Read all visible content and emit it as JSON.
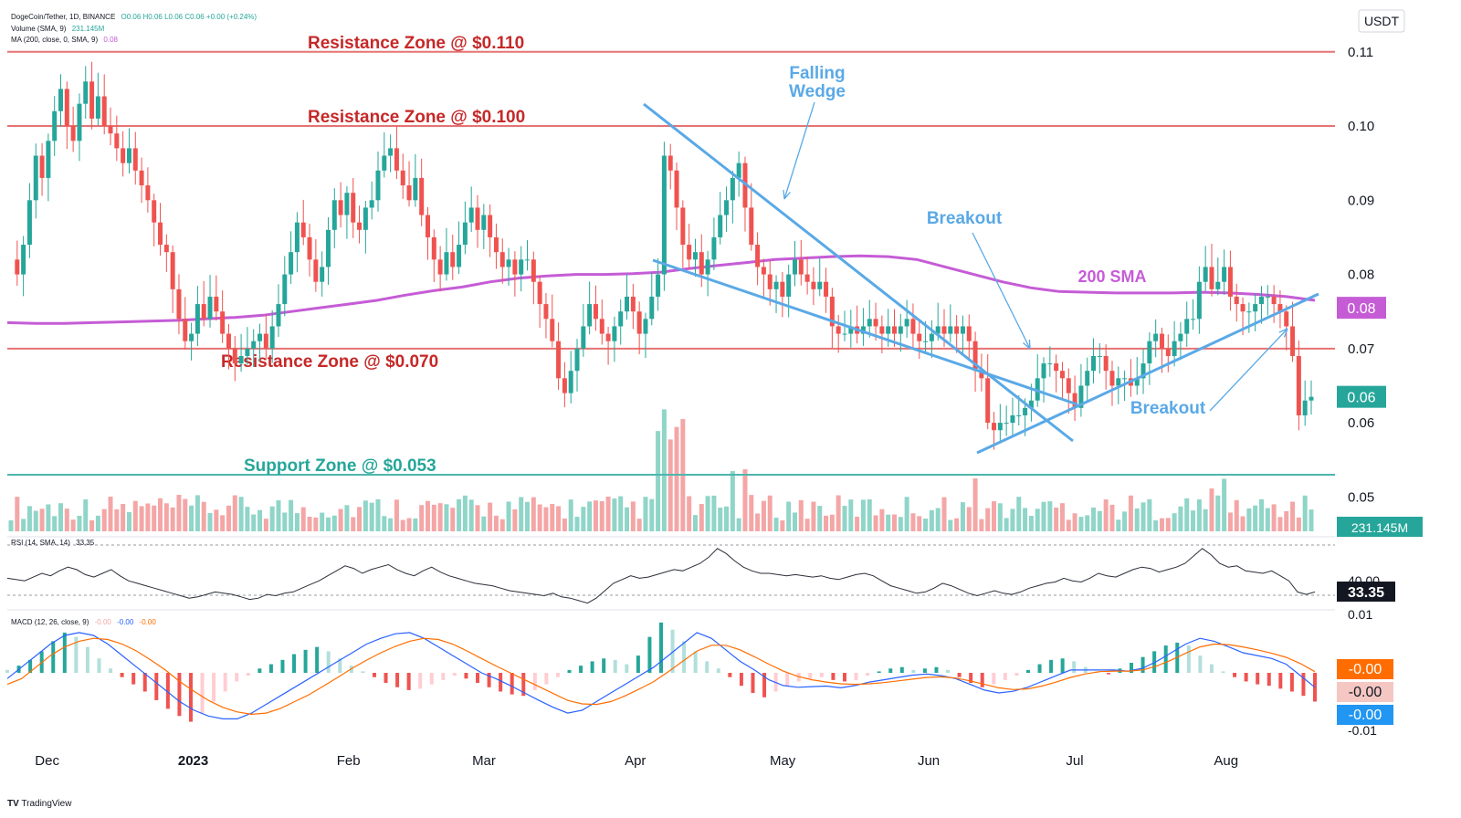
{
  "legend": {
    "symbol": "DogeCoin/Tether, 1D, BINANCE",
    "ohlc": "O0.06  H0.06  L0.06  C0.06  +0.00 (+0.24%)",
    "volume": "Volume (SMA, 9)",
    "volume_value": "231.145M",
    "ma": "MA (200, close, 0, SMA, 9)",
    "ma_value": "0.08",
    "rsi": "RSI (14, SMA, 14)",
    "rsi_value": "33.35",
    "macd": "MACD (12, 26, close, 9)",
    "macd_values": [
      "-0.00",
      "-0.00",
      "-0.00"
    ]
  },
  "currency": "USDT",
  "branding": "TradingView",
  "colors": {
    "up": "#26a69a",
    "down": "#ef5350",
    "up_vol": "#8fd5c8",
    "down_vol": "#f4a6a6",
    "sma": "#c55cd6",
    "resistance": "#e57373",
    "resistance_text": "#c62828",
    "support": "#4db6ac",
    "support_text": "#26a69a",
    "annotation": "#5aa9e6",
    "macd_line": "#2962ff",
    "signal_line": "#ff6d00"
  },
  "chart_data": {
    "type": "candlestick",
    "title": "DogeCoin/Tether, 1D, BINANCE",
    "x_labels": [
      "Dec",
      "2023",
      "Feb",
      "Mar",
      "Apr",
      "May",
      "Jun",
      "Jul",
      "Aug"
    ],
    "y_ticks": [
      "0.11",
      "0.10",
      "0.09",
      "0.08",
      "0.07",
      "0.06",
      "0.05"
    ],
    "ylim": [
      0.045,
      0.116
    ],
    "price_badges": [
      {
        "label": "0.08",
        "value": 0.0755,
        "color": "#c55cd6"
      },
      {
        "label": "0.06",
        "value": 0.0635,
        "color": "#26a69a"
      }
    ],
    "price_series": [
      0.082,
      0.08,
      0.084,
      0.09,
      0.096,
      0.093,
      0.098,
      0.102,
      0.105,
      0.1,
      0.098,
      0.103,
      0.106,
      0.101,
      0.104,
      0.1,
      0.099,
      0.097,
      0.095,
      0.097,
      0.094,
      0.092,
      0.09,
      0.087,
      0.084,
      0.083,
      0.078,
      0.074,
      0.071,
      0.072,
      0.076,
      0.074,
      0.077,
      0.075,
      0.072,
      0.07,
      0.068,
      0.069,
      0.07,
      0.071,
      0.072,
      0.07,
      0.073,
      0.076,
      0.08,
      0.083,
      0.087,
      0.085,
      0.082,
      0.079,
      0.081,
      0.086,
      0.09,
      0.088,
      0.091,
      0.087,
      0.086,
      0.089,
      0.09,
      0.094,
      0.096,
      0.097,
      0.094,
      0.092,
      0.09,
      0.093,
      0.088,
      0.085,
      0.082,
      0.08,
      0.083,
      0.081,
      0.084,
      0.087,
      0.089,
      0.086,
      0.088,
      0.085,
      0.083,
      0.081,
      0.082,
      0.08,
      0.082,
      0.082,
      0.079,
      0.076,
      0.074,
      0.071,
      0.066,
      0.064,
      0.067,
      0.07,
      0.073,
      0.076,
      0.074,
      0.072,
      0.071,
      0.073,
      0.075,
      0.077,
      0.075,
      0.072,
      0.074,
      0.077,
      0.08,
      0.096,
      0.094,
      0.089,
      0.084,
      0.082,
      0.083,
      0.08,
      0.082,
      0.085,
      0.088,
      0.09,
      0.093,
      0.095,
      0.089,
      0.084,
      0.081,
      0.08,
      0.078,
      0.079,
      0.077,
      0.08,
      0.082,
      0.08,
      0.079,
      0.078,
      0.079,
      0.077,
      0.073,
      0.072,
      0.072,
      0.073,
      0.072,
      0.073,
      0.074,
      0.073,
      0.072,
      0.073,
      0.072,
      0.073,
      0.074,
      0.072,
      0.071,
      0.071,
      0.072,
      0.073,
      0.072,
      0.073,
      0.072,
      0.073,
      0.071,
      0.067,
      0.066,
      0.06,
      0.059,
      0.06,
      0.06,
      0.061,
      0.061,
      0.062,
      0.063,
      0.066,
      0.068,
      0.068,
      0.067,
      0.066,
      0.064,
      0.062,
      0.065,
      0.067,
      0.069,
      0.069,
      0.067,
      0.065,
      0.066,
      0.066,
      0.065,
      0.066,
      0.068,
      0.071,
      0.072,
      0.07,
      0.069,
      0.071,
      0.072,
      0.074,
      0.074,
      0.079,
      0.081,
      0.078,
      0.079,
      0.081,
      0.077,
      0.076,
      0.075,
      0.075,
      0.076,
      0.077,
      0.077,
      0.076,
      0.075,
      0.073,
      0.069,
      0.061,
      0.063,
      0.0635
    ],
    "sma200": [
      0.0735,
      0.0734,
      0.0734,
      0.0735,
      0.0736,
      0.0737,
      0.0738,
      0.074,
      0.0742,
      0.0745,
      0.075,
      0.0755,
      0.076,
      0.0765,
      0.0772,
      0.0778,
      0.0783,
      0.079,
      0.0795,
      0.0798,
      0.08,
      0.08,
      0.0801,
      0.0803,
      0.0808,
      0.0812,
      0.0816,
      0.082,
      0.0822,
      0.0824,
      0.0825,
      0.0824,
      0.082,
      0.081,
      0.08,
      0.079,
      0.0782,
      0.0777,
      0.0776,
      0.0775,
      0.0775,
      0.0775,
      0.0776,
      0.0775,
      0.0773,
      0.077,
      0.0765
    ],
    "resistance_levels": [
      {
        "label": "Resistance Zone @ $0.110",
        "value": 0.11
      },
      {
        "label": "Resistance Zone @ $0.100",
        "value": 0.1
      },
      {
        "label": "Resistance Zone @ $0.070",
        "value": 0.07
      }
    ],
    "support_levels": [
      {
        "label": "Support Zone @ $0.053",
        "value": 0.053
      }
    ],
    "annotations": {
      "falling_wedge": [
        "Falling",
        "Wedge"
      ],
      "breakout_1": "Breakout",
      "breakout_2": "Breakout",
      "sma_label": "200 SMA"
    },
    "volume_badge": "231.145M",
    "rsi": {
      "value_label": "33.35",
      "hidden_tick": "40.00",
      "series": [
        46,
        45,
        44,
        47,
        50,
        48,
        52,
        55,
        53,
        49,
        47,
        50,
        53,
        48,
        44,
        42,
        40,
        38,
        36,
        34,
        32,
        30,
        31,
        33,
        35,
        34,
        33,
        31,
        29,
        30,
        33,
        32,
        34,
        35,
        38,
        41,
        44,
        48,
        52,
        56,
        54,
        50,
        53,
        55,
        57,
        53,
        50,
        48,
        52,
        55,
        51,
        48,
        46,
        44,
        42,
        41,
        40,
        38,
        36,
        35,
        34,
        33,
        32,
        34,
        31,
        30,
        28,
        26,
        30,
        36,
        42,
        45,
        48,
        46,
        47,
        49,
        51,
        53,
        52,
        55,
        58,
        63,
        70,
        66,
        60,
        55,
        52,
        50,
        50,
        49,
        48,
        49,
        48,
        47,
        48,
        46,
        45,
        47,
        49,
        50,
        48,
        44,
        40,
        38,
        36,
        34,
        35,
        38,
        42,
        40,
        37,
        34,
        32,
        34,
        36,
        34,
        33,
        35,
        38,
        40,
        42,
        43,
        46,
        44,
        43,
        46,
        50,
        48,
        47,
        50,
        53,
        55,
        54,
        51,
        53,
        55,
        58,
        64,
        70,
        65,
        58,
        55,
        56,
        52,
        51,
        50,
        52,
        48,
        44,
        35,
        33,
        35
      ]
    },
    "macd": {
      "labels": [
        "-0.00",
        "-0.00",
        "-0.00"
      ],
      "hidden_ticks": [
        "0.01",
        "-0.01"
      ],
      "histogram": [
        0.2,
        0.5,
        0.9,
        1.5,
        2.2,
        2.8,
        2.5,
        1.8,
        1.0,
        0.3,
        -0.3,
        -0.8,
        -1.3,
        -1.9,
        -2.5,
        -3.0,
        -3.4,
        -2.8,
        -2.0,
        -1.3,
        -0.6,
        -0.2,
        0.3,
        0.6,
        0.9,
        1.3,
        1.6,
        1.8,
        1.5,
        1.0,
        0.5,
        0.1,
        -0.3,
        -0.7,
        -1.0,
        -1.2,
        -1.1,
        -0.8,
        -0.5,
        -0.2,
        -0.4,
        -0.7,
        -1.0,
        -1.3,
        -1.5,
        -1.6,
        -1.2,
        -0.8,
        -0.3,
        0.2,
        0.5,
        0.8,
        1.0,
        0.9,
        0.6,
        1.2,
        2.5,
        3.5,
        3.0,
        2.2,
        1.5,
        0.8,
        0.3,
        -0.3,
        -0.9,
        -1.4,
        -1.7,
        -1.3,
        -0.9,
        -0.6,
        -0.4,
        -0.3,
        -0.5,
        -0.6,
        -0.5,
        -0.2,
        0.1,
        0.3,
        0.4,
        0.2,
        0.3,
        0.4,
        0.2,
        -0.3,
        -0.7,
        -1.0,
        -0.8,
        -0.5,
        -0.2,
        0.2,
        0.6,
        0.9,
        1.0,
        0.8,
        0.4,
        0.1,
        -0.1,
        0.3,
        0.7,
        1.1,
        1.5,
        1.9,
        2.1,
        1.9,
        1.2,
        0.6,
        0.1,
        -0.3,
        -0.6,
        -0.8,
        -0.9,
        -1.1,
        -1.3,
        -1.6,
        -2.0
      ],
      "macd_line": [
        -1,
        1,
        3,
        5,
        6.5,
        7,
        6.5,
        5,
        3,
        1,
        -1,
        -3,
        -5,
        -6.5,
        -7.5,
        -8,
        -8,
        -7,
        -5.5,
        -4,
        -2.5,
        -1,
        0.5,
        2,
        3.5,
        5,
        6,
        6.8,
        7,
        6,
        4.5,
        3,
        1.5,
        0,
        -1,
        -2.2,
        -3.5,
        -4.8,
        -6,
        -7,
        -6.5,
        -5,
        -3.5,
        -2,
        -0.5,
        1,
        3,
        5,
        7,
        6,
        4,
        2,
        0.5,
        -1.2,
        -2.2,
        -2.5,
        -2.4,
        -2.3,
        -2.6,
        -2.2,
        -1.6,
        -1.2,
        -0.8,
        -0.4,
        -0.2,
        -0.5,
        -1,
        -2,
        -3,
        -3.5,
        -3.2,
        -2.5,
        -1.5,
        -0.5,
        0.5,
        0.5,
        0.5,
        0.5,
        0.3,
        0.8,
        2,
        3.5,
        5,
        6,
        5.5,
        4.5,
        3.5,
        3,
        2.5,
        1.5,
        -0.5,
        -2.5
      ],
      "signal_line": [
        -2,
        -1,
        1,
        3,
        4.5,
        5.5,
        6,
        5.8,
        5,
        3.8,
        2.2,
        0.5,
        -1.5,
        -3.2,
        -4.8,
        -6,
        -6.8,
        -7.2,
        -7,
        -6.2,
        -5,
        -3.8,
        -2.3,
        -0.8,
        0.8,
        2.2,
        3.5,
        4.6,
        5.5,
        6,
        5.8,
        5,
        3.8,
        2.5,
        1.2,
        0,
        -1.2,
        -2.4,
        -3.6,
        -4.8,
        -5.4,
        -5.5,
        -5,
        -4,
        -2.8,
        -1.5,
        0.2,
        2,
        3.8,
        4.8,
        4.8,
        4,
        2.8,
        1.5,
        0.3,
        -0.6,
        -1.2,
        -1.6,
        -1.9,
        -2,
        -1.9,
        -1.7,
        -1.4,
        -1.1,
        -0.8,
        -0.7,
        -0.9,
        -1.4,
        -2,
        -2.6,
        -2.9,
        -2.8,
        -2.3,
        -1.6,
        -0.8,
        -0.2,
        0.2,
        0.3,
        0.3,
        0.5,
        1.2,
        2.2,
        3.4,
        4.5,
        5,
        4.9,
        4.5,
        4,
        3.4,
        2.7,
        1.6,
        0.2
      ]
    }
  }
}
